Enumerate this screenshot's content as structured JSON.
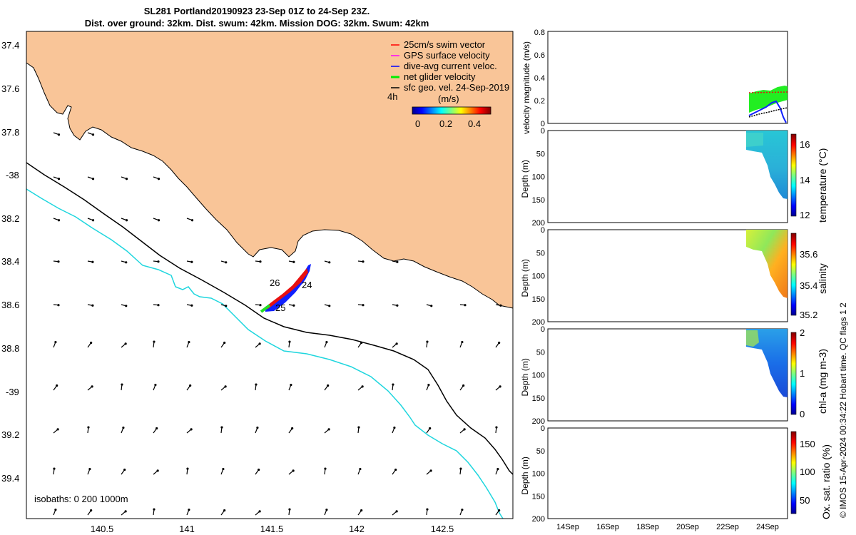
{
  "title_line1": "SL281 Portland20190923 23-Sep 01Z to 24-Sep 23Z.",
  "title_line2": "Dist. over ground: 32km. Dist. swum: 42km. Mission DOG: 32km. Swum: 42km",
  "colors": {
    "land": "#f9c598",
    "isobath_200": "#000000",
    "isobath_1000": "#1fd6de",
    "swim_vector": "#ff0000",
    "gps_velocity": "#ff00ff",
    "dive_avg_current": "#0000ff",
    "net_glider_velocity": "#00ee00",
    "sfc_geo_vel": "#000000"
  },
  "map": {
    "legend": [
      {
        "label": "25cm/s swim vector",
        "color": "#ff0000"
      },
      {
        "label": "GPS surface velocity",
        "color": "#ff00ff"
      },
      {
        "label": "dive-avg current veloc.",
        "color": "#0000ff"
      },
      {
        "label": "net glider velocity",
        "color": "#00ee00"
      },
      {
        "label": "sfc geo. vel. 24-Sep-2019",
        "color": "#000000"
      }
    ],
    "scale_label": "4h",
    "colorbar_label": "(m/s)",
    "colorbar_ticks": [
      "0",
      "0.2",
      "0.4"
    ],
    "isobath_note": "isobaths: 0   200  1000m",
    "lat_ticks": [
      "37.4",
      "37.6",
      "37.8",
      "-38",
      "38.2",
      "38.4",
      "38.6",
      "38.8",
      "-39",
      "39.2",
      "39.4"
    ],
    "lon_ticks": [
      "140.5",
      "141",
      "141.5",
      "142",
      "142.5"
    ],
    "track_labels": [
      "26",
      "24",
      "25"
    ]
  },
  "panels": {
    "velocity": {
      "ylabel": "velocity magnitude (m/s)",
      "yticks": [
        "0.8",
        "0.6",
        "0.4",
        "0.2",
        "0"
      ]
    },
    "temperature": {
      "ylabel": "Depth (m)",
      "cblabel": "temperature (°C)",
      "cbticks": [
        "16",
        "14",
        "12"
      ]
    },
    "salinity": {
      "ylabel": "Depth (m)",
      "cblabel": "salinity",
      "cbticks": [
        "35.6",
        "35.4",
        "35.2"
      ]
    },
    "chla": {
      "ylabel": "Depth (m)",
      "cblabel": "chl-a (mg m-3)",
      "cbticks": [
        "2",
        "1",
        "0"
      ]
    },
    "oxygen": {
      "ylabel": "Depth (m)",
      "cblabel": "Ox. sat. ratio (%)",
      "cbticks": [
        "150",
        "100",
        "50"
      ]
    },
    "depth_ticks": [
      "0",
      "50",
      "100",
      "150",
      "200"
    ],
    "date_ticks": [
      "14Sep",
      "16Sep",
      "18Sep",
      "20Sep",
      "22Sep",
      "24Sep"
    ]
  },
  "credit": "© IMOS 15-Apr-2024 00:34:22 Hobart time. QC flags 1  2",
  "chart_data": [
    {
      "type": "line",
      "title": "",
      "ylabel": "velocity magnitude (m/s)",
      "ylim": [
        0,
        0.8
      ],
      "x": [
        "23Sep",
        "24Sep"
      ],
      "series": [
        {
          "name": "net glider velocity",
          "values": [
            0.25,
            0.29
          ]
        },
        {
          "name": "dive-avg current veloc.",
          "values": [
            0.05,
            0.15
          ]
        },
        {
          "name": "sfc geo. vel. 24-Sep-2019",
          "values": [
            0.06,
            0.13
          ]
        }
      ]
    },
    {
      "type": "heatmap",
      "ylabel": "Depth (m)",
      "colorbar": "temperature (°C)",
      "clim": [
        12,
        16.5
      ],
      "ylim": [
        0,
        200
      ]
    },
    {
      "type": "heatmap",
      "ylabel": "Depth (m)",
      "colorbar": "salinity",
      "clim": [
        35.2,
        35.7
      ],
      "ylim": [
        0,
        200
      ]
    },
    {
      "type": "heatmap",
      "ylabel": "Depth (m)",
      "colorbar": "chl-a (mg m-3)",
      "clim": [
        0,
        2
      ],
      "ylim": [
        0,
        200
      ]
    },
    {
      "type": "heatmap",
      "ylabel": "Depth (m)",
      "colorbar": "Ox. sat. ratio (%)",
      "clim": [
        30,
        170
      ],
      "ylim": [
        0,
        200
      ]
    }
  ]
}
